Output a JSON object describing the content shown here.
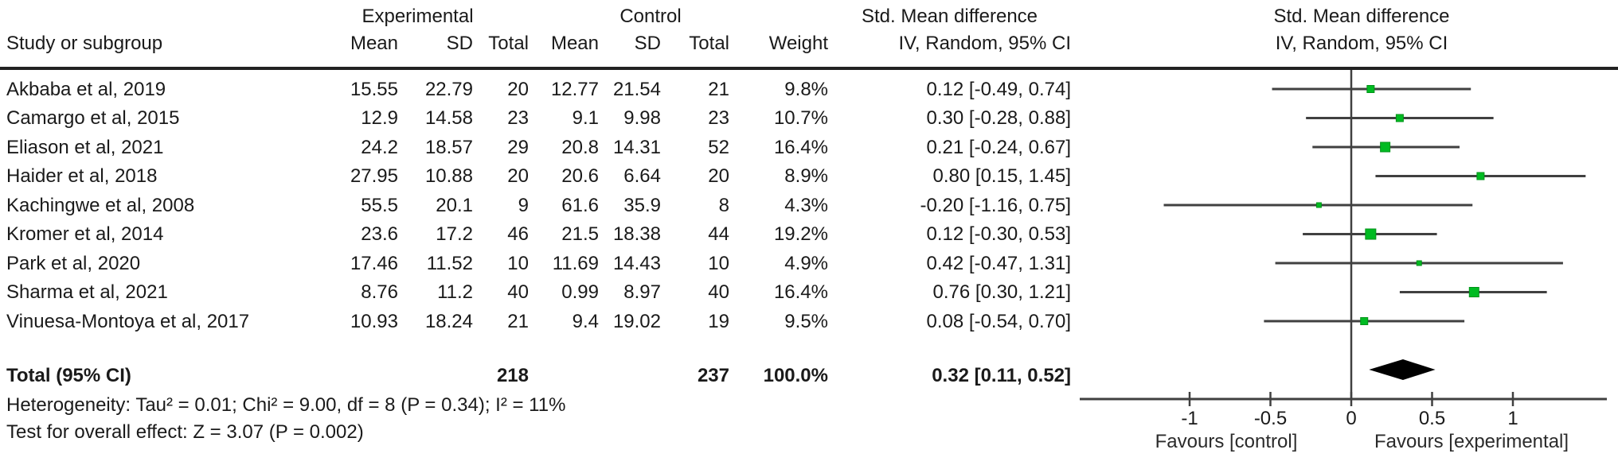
{
  "header": {
    "group_experimental": "Experimental",
    "group_control": "Control",
    "study_col": "Study or subgroup",
    "exp_mean": "Mean",
    "exp_sd": "SD",
    "exp_total": "Total",
    "ctrl_mean": "Mean",
    "ctrl_sd": "SD",
    "ctrl_total": "Total",
    "weight": "Weight",
    "effect_col_line1": "Std. Mean difference",
    "effect_col_line2": "IV, Random, 95% CI",
    "plot_col_line1": "Std. Mean difference",
    "plot_col_line2": "IV, Random, 95% CI"
  },
  "footer": {
    "heterogeneity": "Heterogeneity: Tau² = 0.01; Chi² = 9.00, df = 8 (P = 0.34); I² = 11%",
    "overall_effect": "Test for overall effect: Z = 3.07 (P = 0.002)"
  },
  "colors": {
    "square_fill": "#00bb22",
    "square_stroke": "#009218",
    "ci_line": "#404040",
    "axis_line": "#404040",
    "diamond": "#000000",
    "header_rule": "#222222",
    "text": "#1a1a1a"
  },
  "chart_data": {
    "type": "scatter",
    "subtype": "forest-plot",
    "title": "Std. Mean difference",
    "effect_model": "IV, Random, 95% CI",
    "x_axis": {
      "ticks": [
        -1,
        -0.5,
        0,
        0.5,
        1
      ],
      "tick_labels": [
        "-1",
        "-0.5",
        "0",
        "0.5",
        "1"
      ],
      "range": [
        -1.68,
        1.58
      ],
      "left_label": "Favours [control]",
      "right_label": "Favours [experimental]"
    },
    "studies": [
      {
        "name": "Akbaba et al, 2019",
        "exp_mean": "15.55",
        "exp_sd": "22.79",
        "exp_total": "20",
        "ctrl_mean": "12.77",
        "ctrl_sd": "21.54",
        "ctrl_total": "21",
        "weight": "9.8%",
        "weight_pct": 9.8,
        "ci_label": "0.12 [-0.49, 0.74]",
        "estimate": 0.12,
        "ci_lower": -0.49,
        "ci_upper": 0.74
      },
      {
        "name": "Camargo et al, 2015",
        "exp_mean": "12.9",
        "exp_sd": "14.58",
        "exp_total": "23",
        "ctrl_mean": "9.1",
        "ctrl_sd": "9.98",
        "ctrl_total": "23",
        "weight": "10.7%",
        "weight_pct": 10.7,
        "ci_label": "0.30 [-0.28, 0.88]",
        "estimate": 0.3,
        "ci_lower": -0.28,
        "ci_upper": 0.88
      },
      {
        "name": "Eliason et al, 2021",
        "exp_mean": "24.2",
        "exp_sd": "18.57",
        "exp_total": "29",
        "ctrl_mean": "20.8",
        "ctrl_sd": "14.31",
        "ctrl_total": "52",
        "weight": "16.4%",
        "weight_pct": 16.4,
        "ci_label": "0.21 [-0.24, 0.67]",
        "estimate": 0.21,
        "ci_lower": -0.24,
        "ci_upper": 0.67
      },
      {
        "name": "Haider et al, 2018",
        "exp_mean": "27.95",
        "exp_sd": "10.88",
        "exp_total": "20",
        "ctrl_mean": "20.6",
        "ctrl_sd": "6.64",
        "ctrl_total": "20",
        "weight": "8.9%",
        "weight_pct": 8.9,
        "ci_label": "0.80 [0.15, 1.45]",
        "estimate": 0.8,
        "ci_lower": 0.15,
        "ci_upper": 1.45
      },
      {
        "name": "Kachingwe et al, 2008",
        "exp_mean": "55.5",
        "exp_sd": "20.1",
        "exp_total": "9",
        "ctrl_mean": "61.6",
        "ctrl_sd": "35.9",
        "ctrl_total": "8",
        "weight": "4.3%",
        "weight_pct": 4.3,
        "ci_label": "-0.20 [-1.16, 0.75]",
        "estimate": -0.2,
        "ci_lower": -1.16,
        "ci_upper": 0.75
      },
      {
        "name": "Kromer et al, 2014",
        "exp_mean": "23.6",
        "exp_sd": "17.2",
        "exp_total": "46",
        "ctrl_mean": "21.5",
        "ctrl_sd": "18.38",
        "ctrl_total": "44",
        "weight": "19.2%",
        "weight_pct": 19.2,
        "ci_label": "0.12 [-0.30, 0.53]",
        "estimate": 0.12,
        "ci_lower": -0.3,
        "ci_upper": 0.53
      },
      {
        "name": "Park et al, 2020",
        "exp_mean": "17.46",
        "exp_sd": "11.52",
        "exp_total": "10",
        "ctrl_mean": "11.69",
        "ctrl_sd": "14.43",
        "ctrl_total": "10",
        "weight": "4.9%",
        "weight_pct": 4.9,
        "ci_label": "0.42 [-0.47, 1.31]",
        "estimate": 0.42,
        "ci_lower": -0.47,
        "ci_upper": 1.31
      },
      {
        "name": "Sharma et al, 2021",
        "exp_mean": "8.76",
        "exp_sd": "11.2",
        "exp_total": "40",
        "ctrl_mean": "0.99",
        "ctrl_sd": "8.97",
        "ctrl_total": "40",
        "weight": "16.4%",
        "weight_pct": 16.4,
        "ci_label": "0.76 [0.30, 1.21]",
        "estimate": 0.76,
        "ci_lower": 0.3,
        "ci_upper": 1.21
      },
      {
        "name": "Vinuesa-Montoya et al, 2017",
        "exp_mean": "10.93",
        "exp_sd": "18.24",
        "exp_total": "21",
        "ctrl_mean": "9.4",
        "ctrl_sd": "19.02",
        "ctrl_total": "19",
        "weight": "9.5%",
        "weight_pct": 9.5,
        "ci_label": "0.08 [-0.54, 0.70]",
        "estimate": 0.08,
        "ci_lower": -0.54,
        "ci_upper": 0.7
      }
    ],
    "total": {
      "label": "Total (95% CI)",
      "exp_total": "218",
      "ctrl_total": "237",
      "weight": "100.0%",
      "ci_label": "0.32 [0.11, 0.52]",
      "estimate": 0.32,
      "ci_lower": 0.11,
      "ci_upper": 0.52
    }
  }
}
